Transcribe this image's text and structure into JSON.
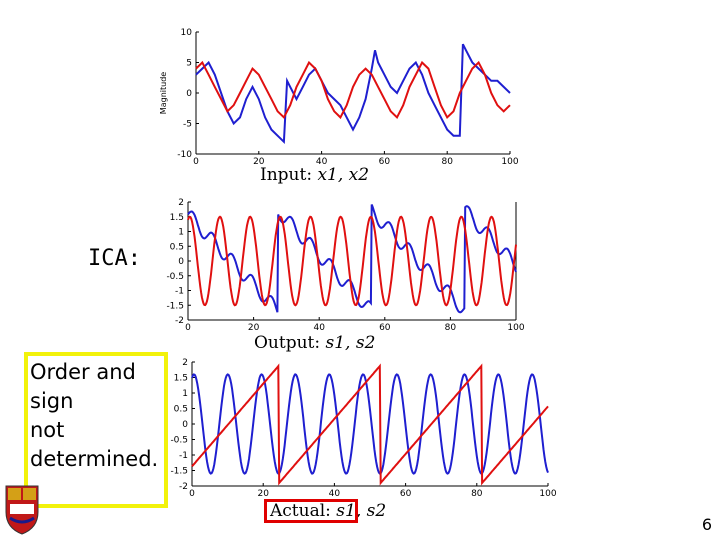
{
  "chart_data": [
    {
      "type": "line",
      "ylabel": "Magnitude",
      "xlim": [
        0,
        100
      ],
      "ylim": [
        -10,
        10
      ],
      "xticks": [
        "0",
        "20",
        "40",
        "60",
        "80",
        "100"
      ],
      "yticks": [
        "10",
        "5",
        "0",
        "-5",
        "-10"
      ],
      "caption_word": "Input:",
      "caption_vars": "x1, x2",
      "series": [
        {
          "color": "#1f1fd0",
          "x": [
            0,
            2,
            4,
            6,
            8,
            10,
            12,
            14,
            16,
            18,
            20,
            22,
            24,
            26,
            28,
            29,
            30,
            32,
            34,
            36,
            38,
            40,
            42,
            44,
            46,
            48,
            50,
            52,
            54,
            56,
            57,
            58,
            60,
            62,
            64,
            66,
            68,
            70,
            72,
            74,
            76,
            78,
            80,
            82,
            84,
            85,
            86,
            88,
            90,
            92,
            94,
            96,
            98,
            100
          ],
          "y": [
            3,
            4,
            5,
            3,
            0,
            -3,
            -5,
            -4,
            -1,
            1,
            -1,
            -4,
            -6,
            -7,
            -8,
            2,
            1,
            -1,
            1,
            3,
            4,
            2,
            0,
            -1,
            -2,
            -4,
            -6,
            -4,
            -1,
            4,
            7,
            5,
            3,
            1,
            0,
            2,
            4,
            5,
            3,
            0,
            -2,
            -4,
            -6,
            -7,
            -7,
            8,
            7,
            5,
            4,
            3,
            2,
            2,
            1,
            0
          ]
        },
        {
          "color": "#e01010",
          "x": [
            0,
            2,
            4,
            6,
            8,
            10,
            12,
            14,
            16,
            18,
            20,
            22,
            24,
            26,
            28,
            30,
            32,
            34,
            36,
            38,
            40,
            42,
            44,
            46,
            48,
            50,
            52,
            54,
            56,
            58,
            60,
            62,
            64,
            66,
            68,
            70,
            72,
            74,
            76,
            78,
            80,
            82,
            84,
            86,
            88,
            90,
            92,
            94,
            96,
            98,
            100
          ],
          "y": [
            4,
            5,
            3,
            1,
            -1,
            -3,
            -2,
            0,
            2,
            4,
            3,
            1,
            -1,
            -3,
            -4,
            -2,
            1,
            3,
            5,
            4,
            2,
            -1,
            -3,
            -4,
            -2,
            1,
            3,
            4,
            3,
            1,
            -1,
            -3,
            -4,
            -2,
            1,
            3,
            5,
            4,
            1,
            -2,
            -4,
            -3,
            0,
            2,
            4,
            5,
            3,
            0,
            -2,
            -3,
            -2
          ]
        }
      ]
    },
    {
      "type": "line",
      "xlim": [
        0,
        100
      ],
      "ylim": [
        -2,
        2
      ],
      "xticks": [
        "0",
        "20",
        "40",
        "60",
        "80",
        "100"
      ],
      "yticks": [
        "2",
        "1.5",
        "1",
        "0.5",
        "0",
        "-0.5",
        "-1",
        "-1.5",
        "-2"
      ],
      "caption_word": "Output:",
      "caption_vars": "s1, s2",
      "series": [
        {
          "color": "#1f1fd0",
          "kind": "saw_down",
          "period": 28.5,
          "amplitude": 1.7
        },
        {
          "color": "#e01010",
          "kind": "sine",
          "period": 9.2,
          "amplitude": 1.5
        }
      ]
    },
    {
      "type": "line",
      "xlim": [
        0,
        100
      ],
      "ylim": [
        -2,
        2
      ],
      "xticks": [
        "0",
        "20",
        "40",
        "60",
        "80",
        "100"
      ],
      "yticks": [
        "2",
        "1.5",
        "1",
        "0.5",
        "0",
        "-0.5",
        "-1",
        "-1.5",
        "-2"
      ],
      "caption_word": "Actual:",
      "caption_vars": "s1, s2",
      "series": [
        {
          "color": "#1f1fd0",
          "kind": "sine",
          "period": 9.5,
          "amplitude": 1.6
        },
        {
          "color": "#e01010",
          "kind": "saw_up",
          "period": 28.5,
          "amplitude": 1.9
        }
      ]
    }
  ],
  "slide": {
    "ica_label": "ICA:",
    "note_lines": [
      "Order and",
      "sign",
      "not",
      "determined."
    ],
    "page_number": "6"
  }
}
